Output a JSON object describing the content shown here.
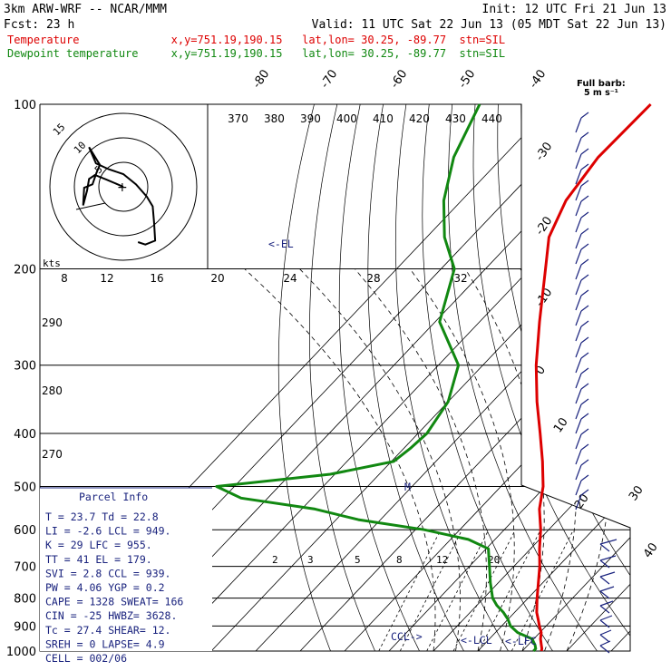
{
  "header": {
    "model": "3km ARW-WRF -- NCAR/MMM",
    "init": "Init: 12 UTC Fri 21 Jun 13",
    "fcst": "Fcst:    23 h",
    "valid": "Valid: 11 UTC Sat 22 Jun 13 (05 MDT Sat 22 Jun 13)",
    "temp_line": "Temperature              x,y=751.19,190.15   lat,lon= 30.25, -89.77  stn=SIL",
    "dew_line": "Dewpoint temperature     x,y=751.19,190.15   lat,lon= 30.25, -89.77  stn=SIL"
  },
  "colors": {
    "temperature": "#dd0000",
    "dewpoint": "#118811",
    "wind": "#1a237e",
    "parcel_text": "#1a237e"
  },
  "barb_note": {
    "line1": "Full barb:",
    "line2": "5 m s⁻¹"
  },
  "labels": {
    "el": "<-EL",
    "lcl": "<-LCL",
    "lfc": "<-LFC",
    "ccl": "CCL->",
    "kts": "kts",
    "m": "M"
  },
  "parcel_info": {
    "title": "Parcel Info",
    "rows": [
      "T    =   23.7  Td  =  22.8",
      "LI   =   -2.6  LCL =  949.",
      "K    =     29  LFC =  955.",
      "TT   =     41  EL  =  179.",
      "SVI  =    2.8  CCL =  939.",
      "PW   =   4.06  YGP =   0.2",
      "CAPE =   1328  SWEAT=  166",
      "CIN  =    -25  HWBZ= 3628.",
      "Tc   =   27.4  SHEAR=  12.",
      "SREH =      0  LAPSE=  4.9",
      "CELL = 002/06"
    ]
  },
  "chart_data": {
    "type": "line",
    "diagram": "skew-T log-p",
    "pressure_levels_hpa": [
      100,
      200,
      300,
      400,
      500,
      600,
      700,
      800,
      900,
      1000
    ],
    "pressure_range_hpa": [
      1000,
      100
    ],
    "isotherms_c": [
      -90,
      -80,
      -70,
      -60,
      -50,
      -40,
      -30,
      -20,
      -10,
      0,
      10,
      20,
      30,
      40
    ],
    "isotherm_labels": [
      "-80",
      "-70",
      "-60",
      "-50",
      "-40",
      "-30",
      "-20",
      "-10",
      "0",
      "10",
      "20",
      "30",
      "40"
    ],
    "theta_labels": [
      "370",
      "380",
      "390",
      "400",
      "410",
      "420",
      "430",
      "440"
    ],
    "theta_side_labels": [
      "290",
      "280",
      "270"
    ],
    "mixing_ratio_labels": [
      "2",
      "3",
      "5",
      "8",
      "12",
      "20"
    ],
    "hodograph_speed_labels": [
      "8",
      "12",
      "16",
      "20",
      "24",
      "28",
      "32"
    ],
    "hodograph_ring_labels": [
      "15",
      "10",
      "5"
    ],
    "series": [
      {
        "name": "Temperature",
        "pressure_hpa": [
          1000,
          990,
          975,
          950,
          925,
          900,
          875,
          850,
          800,
          750,
          700,
          650,
          600,
          550,
          500,
          450,
          400,
          350,
          300,
          250,
          200,
          175,
          150,
          125,
          100
        ],
        "temperature_c": [
          24.3,
          23.9,
          23.0,
          21.5,
          20.3,
          18.5,
          16.8,
          15.0,
          12.0,
          9.0,
          5.8,
          2.0,
          -1.8,
          -6.5,
          -10.5,
          -16.0,
          -22.5,
          -30.0,
          -38.0,
          -46.5,
          -56.5,
          -62.5,
          -66.5,
          -68.5,
          -68.0
        ]
      },
      {
        "name": "Dewpoint temperature",
        "pressure_hpa": [
          1000,
          990,
          975,
          950,
          925,
          900,
          875,
          850,
          825,
          800,
          750,
          700,
          650,
          625,
          600,
          575,
          550,
          525,
          500,
          475,
          450,
          425,
          400,
          350,
          300,
          250,
          200,
          175,
          150,
          125,
          100
        ],
        "temperature_c": [
          22.5,
          22.5,
          21.6,
          19.6,
          15.0,
          12.0,
          10.0,
          7.5,
          4.5,
          2.0,
          -1.8,
          -5.5,
          -9.5,
          -16.0,
          -28.0,
          -45.0,
          -57.0,
          -76.0,
          -84.0,
          -61.0,
          -49.5,
          -48.5,
          -48.0,
          -50.0,
          -55.5,
          -69.0,
          -77.0,
          -86.0,
          -94.0,
          -101.0,
          -106.5
        ]
      }
    ],
    "hodograph_curve_kt": [
      [
        0,
        0
      ],
      [
        -3.5,
        1.5
      ],
      [
        -5.8,
        2.4
      ],
      [
        -7.0,
        1.6
      ],
      [
        -7.4,
        -0.8
      ],
      [
        -8.2,
        -3.8
      ],
      [
        -8.0,
        -0.2
      ],
      [
        -6.3,
        0.5
      ],
      [
        -5.5,
        2.8
      ],
      [
        -4.8,
        4.5
      ],
      [
        -7.0,
        8.1
      ],
      [
        -5.6,
        4.8
      ],
      [
        -3.0,
        3.6
      ],
      [
        0.0,
        2.6
      ],
      [
        2.6,
        0.5
      ],
      [
        4.8,
        -2.0
      ],
      [
        6.0,
        -4.0
      ],
      [
        6.3,
        -7.5
      ],
      [
        6.5,
        -11.0
      ],
      [
        4.5,
        -11.8
      ],
      [
        3.0,
        -11.3
      ]
    ],
    "xlabel": "",
    "ylabel": ""
  }
}
